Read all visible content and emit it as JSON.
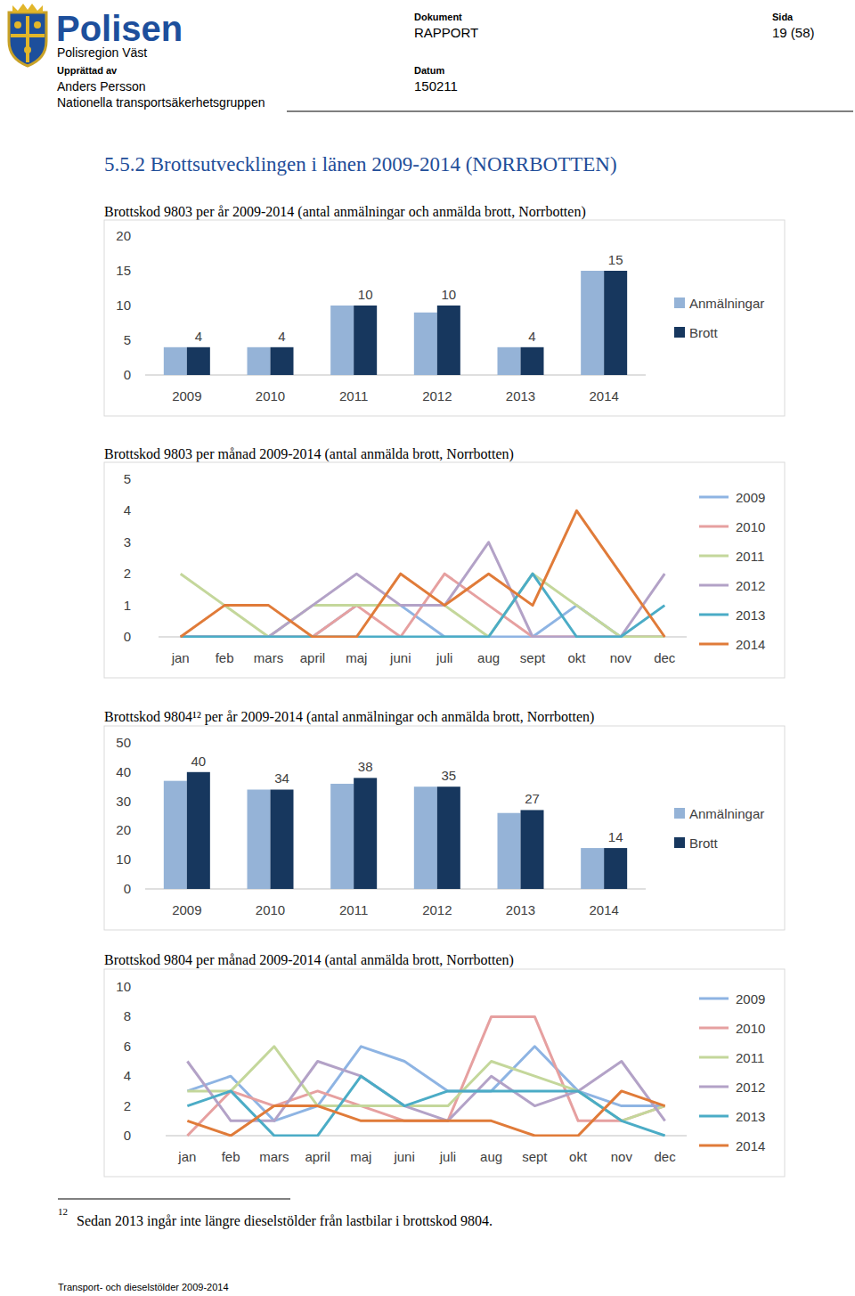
{
  "header": {
    "organization": "Polisen",
    "region": "Polisregion Väst",
    "author_label": "Upprättad av",
    "author": "Anders Persson",
    "group": "Nationella transportsäkerhetsgruppen",
    "document_label": "Dokument",
    "document": "RAPPORT",
    "date_label": "Datum",
    "date": "150211",
    "page_label": "Sida",
    "page": "19 (58)"
  },
  "section_title": "5.5.2 Brottsutvecklingen i länen 2009-2014 (NORRBOTTEN)",
  "chart_data": [
    {
      "type": "bar",
      "title": "Brottskod 9803 per år 2009-2014 (antal anmälningar och anmälda brott, Norrbotten)",
      "categories": [
        "2009",
        "2010",
        "2011",
        "2012",
        "2013",
        "2014"
      ],
      "series": [
        {
          "name": "Anmälningar",
          "color": "#95b3d7",
          "values": [
            4,
            4,
            10,
            9,
            4,
            15
          ]
        },
        {
          "name": "Brott",
          "color": "#17375e",
          "values": [
            4,
            4,
            10,
            10,
            4,
            15
          ],
          "data_labels": true
        }
      ],
      "ylim": [
        0,
        20
      ],
      "yticks": [
        0,
        5,
        10,
        15,
        20
      ],
      "legend": "right"
    },
    {
      "type": "line",
      "title": "Brottskod 9803 per månad 2009-2014 (antal anmälda brott, Norrbotten)",
      "categories": [
        "jan",
        "feb",
        "mars",
        "april",
        "maj",
        "juni",
        "juli",
        "aug",
        "sept",
        "okt",
        "nov",
        "dec"
      ],
      "series": [
        {
          "name": "2009",
          "color": "#8eb4e3",
          "values": [
            0,
            0,
            0,
            0,
            1,
            1,
            0,
            0,
            0,
            1,
            0,
            0
          ]
        },
        {
          "name": "2010",
          "color": "#e6a0a0",
          "values": [
            0,
            0,
            0,
            0,
            1,
            0,
            2,
            1,
            0,
            0,
            0,
            0
          ]
        },
        {
          "name": "2011",
          "color": "#c4d79b",
          "values": [
            2,
            1,
            0,
            1,
            1,
            1,
            1,
            0,
            2,
            1,
            0,
            0
          ]
        },
        {
          "name": "2012",
          "color": "#b3a2c7",
          "values": [
            0,
            0,
            0,
            1,
            2,
            1,
            1,
            3,
            0,
            0,
            0,
            2
          ]
        },
        {
          "name": "2013",
          "color": "#4bacc6",
          "values": [
            0,
            0,
            0,
            0,
            0,
            0,
            0,
            0,
            2,
            0,
            0,
            1
          ]
        },
        {
          "name": "2014",
          "color": "#e07b39",
          "values": [
            0,
            1,
            1,
            0,
            0,
            2,
            1,
            2,
            1,
            4,
            2,
            0
          ]
        }
      ],
      "ylim": [
        0,
        5
      ],
      "yticks": [
        0,
        1,
        2,
        3,
        4,
        5
      ],
      "legend": "right"
    },
    {
      "type": "bar",
      "title": "Brottskod 9804¹² per år 2009-2014 (antal anmälningar och anmälda brott, Norrbotten)",
      "categories": [
        "2009",
        "2010",
        "2011",
        "2012",
        "2013",
        "2014"
      ],
      "series": [
        {
          "name": "Anmälningar",
          "color": "#95b3d7",
          "values": [
            37,
            34,
            36,
            35,
            26,
            14
          ]
        },
        {
          "name": "Brott",
          "color": "#17375e",
          "values": [
            40,
            34,
            38,
            35,
            27,
            14
          ],
          "data_labels": true
        }
      ],
      "ylim": [
        0,
        50
      ],
      "yticks": [
        0,
        10,
        20,
        30,
        40,
        50
      ],
      "legend": "right"
    },
    {
      "type": "line",
      "title": "Brottskod 9804 per månad 2009-2014 (antal anmälda brott, Norrbotten)",
      "categories": [
        "jan",
        "feb",
        "mars",
        "april",
        "maj",
        "juni",
        "juli",
        "aug",
        "sept",
        "okt",
        "nov",
        "dec"
      ],
      "series": [
        {
          "name": "2009",
          "color": "#8eb4e3",
          "values": [
            3,
            4,
            1,
            2,
            6,
            5,
            3,
            3,
            6,
            3,
            2,
            2
          ]
        },
        {
          "name": "2010",
          "color": "#e6a0a0",
          "values": [
            0,
            3,
            2,
            3,
            2,
            1,
            1,
            8,
            8,
            1,
            1,
            2
          ]
        },
        {
          "name": "2011",
          "color": "#c4d79b",
          "values": [
            3,
            3,
            6,
            2,
            2,
            2,
            2,
            5,
            4,
            3,
            1,
            2
          ]
        },
        {
          "name": "2012",
          "color": "#b3a2c7",
          "values": [
            5,
            1,
            1,
            5,
            4,
            2,
            1,
            4,
            2,
            3,
            5,
            1
          ]
        },
        {
          "name": "2013",
          "color": "#4bacc6",
          "values": [
            2,
            3,
            0,
            0,
            4,
            2,
            3,
            3,
            3,
            3,
            1,
            0
          ]
        },
        {
          "name": "2014",
          "color": "#e07b39",
          "values": [
            1,
            0,
            2,
            2,
            1,
            1,
            1,
            1,
            0,
            0,
            3,
            2
          ]
        }
      ],
      "ylim": [
        0,
        10
      ],
      "yticks": [
        0,
        2,
        4,
        6,
        8,
        10
      ],
      "legend": "right"
    }
  ],
  "footnote": {
    "marker": "12",
    "text": "Sedan 2013 ingår inte längre dieselstölder från lastbilar i brottskod 9804."
  },
  "footer": "Transport- och dieselstölder 2009-2014"
}
